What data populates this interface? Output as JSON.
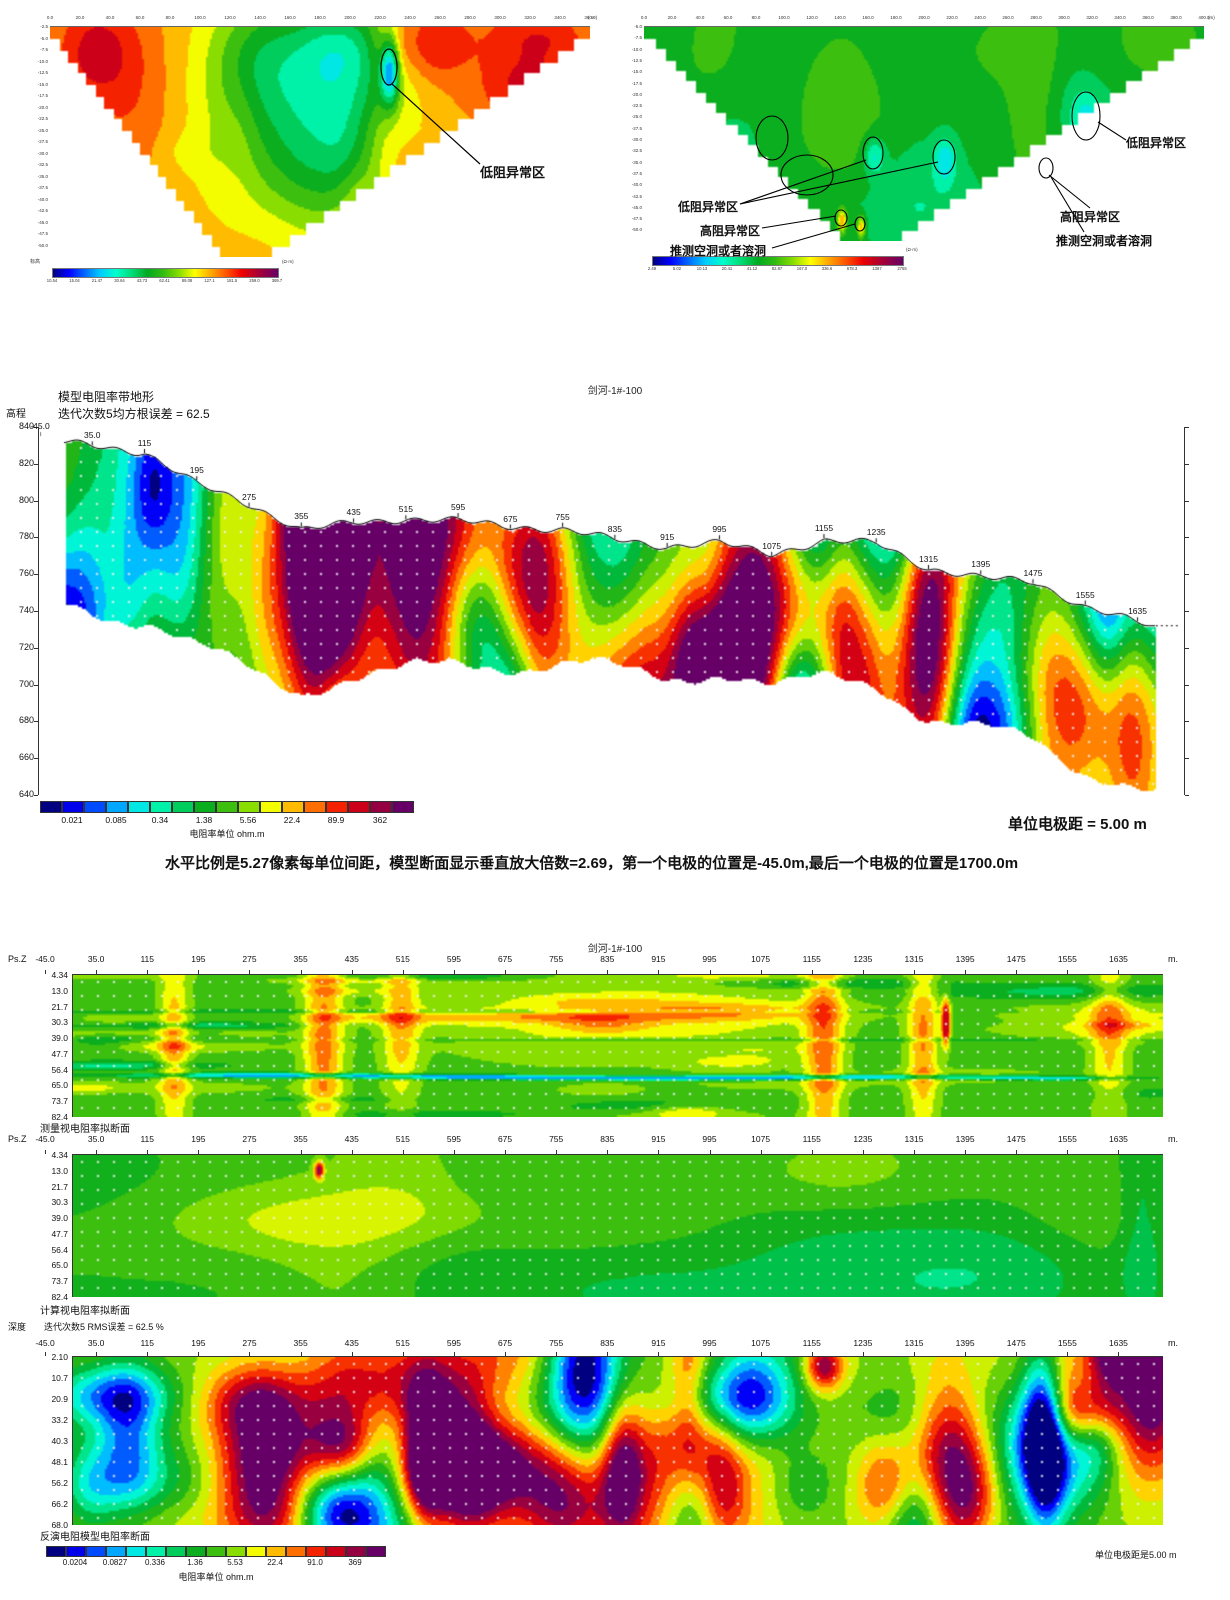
{
  "palette": [
    [
      0.0,
      "#000080"
    ],
    [
      0.07,
      "#0000ff"
    ],
    [
      0.14,
      "#0066ff"
    ],
    [
      0.21,
      "#00ccff"
    ],
    [
      0.28,
      "#00ffcc"
    ],
    [
      0.35,
      "#00dd77"
    ],
    [
      0.42,
      "#00aa22"
    ],
    [
      0.49,
      "#33bb11"
    ],
    [
      0.56,
      "#88dd00"
    ],
    [
      0.63,
      "#ffff00"
    ],
    [
      0.7,
      "#ffaa00"
    ],
    [
      0.77,
      "#ff5500"
    ],
    [
      0.84,
      "#ee0000"
    ],
    [
      0.91,
      "#aa0033"
    ],
    [
      1.0,
      "#660066"
    ]
  ],
  "section_a": {
    "x_unit": "( m )",
    "x_ticks": [
      "0.0",
      "20.0",
      "40.0",
      "60.0",
      "80.0",
      "100.0",
      "120.0",
      "140.0",
      "160.0",
      "180.0",
      "200.0",
      "220.0",
      "240.0",
      "260.0",
      "280.0",
      "300.0",
      "320.0",
      "340.0",
      "360.0"
    ],
    "y_ticks": [
      "-2.5",
      "-5.0",
      "-7.5",
      "-10.0",
      "-12.5",
      "-15.0",
      "-17.5",
      "-20.0",
      "-22.5",
      "-25.0",
      "-27.5",
      "-30.0",
      "-32.5",
      "-35.0",
      "-37.5",
      "-40.0",
      "-42.5",
      "-45.0",
      "-47.5",
      "-50.0"
    ],
    "corner_label": "标高",
    "annotation": "低阻异常区",
    "colorbar": {
      "values": [
        "10.54",
        "15.04",
        "21.47",
        "30.64",
        "43.73",
        "62.41",
        "89.08",
        "127.1",
        "181.5",
        "259.0",
        "369.7"
      ],
      "unit": "(Ω·m)"
    }
  },
  "section_b": {
    "x_unit": "(m)",
    "x_ticks": [
      "0.0",
      "20.0",
      "40.0",
      "60.0",
      "80.0",
      "100.0",
      "120.0",
      "140.0",
      "160.0",
      "180.0",
      "200.0",
      "220.0",
      "240.0",
      "260.0",
      "280.0",
      "300.0",
      "320.0",
      "340.0",
      "360.0",
      "380.0",
      "400.0"
    ],
    "y_ticks": [
      "-5.0",
      "-7.5",
      "-10.0",
      "-12.5",
      "-15.0",
      "-17.5",
      "-20.0",
      "-22.5",
      "-25.0",
      "-27.5",
      "-30.0",
      "-32.5",
      "-35.0",
      "-37.5",
      "-40.0",
      "-42.5",
      "-45.0",
      "-47.5",
      "-50.0"
    ],
    "annotations": [
      "低阻异常区",
      "高阻异常区",
      "推测空洞或者溶洞",
      "低阻异常区",
      "高阻异常区",
      "推测空洞或者溶洞"
    ],
    "colorbar": {
      "values": [
        "2.49",
        "5.02",
        "10.13",
        "20.41",
        "41.12",
        "82.87",
        "167.0",
        "336.6",
        "678.3",
        "1367",
        "2755"
      ],
      "unit": "(Ω·m)"
    }
  },
  "model_section": {
    "header_line1": "模型电阻率带地形",
    "header_line2": "迭代次数5均方根误差 = 62.5",
    "title": "剑河-1#-100",
    "y_axis_label": "高程",
    "elevation_ticks": [
      "840",
      "820",
      "800",
      "780",
      "760",
      "740",
      "720",
      "700",
      "680",
      "660",
      "640"
    ],
    "distance_labels": [
      "-45.0",
      "35.0",
      "115",
      "195",
      "275",
      "355",
      "435",
      "515",
      "595",
      "675",
      "755",
      "835",
      "915",
      "995",
      "1075",
      "1155",
      "1235",
      "1315",
      "1395",
      "1475",
      "1555",
      "1635"
    ],
    "colorbar": {
      "values": [
        "0.021",
        "0.085",
        "0.34",
        "1.38",
        "5.56",
        "22.4",
        "89.9",
        "362"
      ],
      "caption": "电阻率单位 ohm.m"
    },
    "electrode_note": "单位电极距 = 5.00 m"
  },
  "scale_note": "水平比例是5.27像素每单位间距，模型断面显示垂直放大倍数=2.69，第一个电极的位置是-45.0m,最后一个电极的位置是1700.0m",
  "pseudosections": {
    "title": "剑河-1#-100",
    "axis_label_psz": "Ps.Z",
    "axis_label_depth": "深度",
    "meter_label": "m.",
    "rms_header": "迭代次数5 RMS误差 = 62.5 %",
    "distance_labels": [
      "-45.0",
      "35.0",
      "115",
      "195",
      "275",
      "355",
      "435",
      "515",
      "595",
      "675",
      "755",
      "835",
      "915",
      "995",
      "1075",
      "1155",
      "1235",
      "1315",
      "1395",
      "1475",
      "1555",
      "1635"
    ],
    "measured_depth_ticks": [
      "4.34",
      "13.0",
      "21.7",
      "30.3",
      "39.0",
      "47.7",
      "56.4",
      "65.0",
      "73.7",
      "82.4"
    ],
    "inverted_depth_ticks": [
      "2.10",
      "10.7",
      "20.9",
      "33.2",
      "40.3",
      "48.1",
      "56.2",
      "66.2",
      "68.0"
    ],
    "caption_measured": "测量视电阻率拟断面",
    "caption_calculated": "计算视电阻率拟断面",
    "caption_inverted": "反演电阻模型电阻率断面",
    "colorbar": {
      "values": [
        "0.0204",
        "0.0827",
        "0.336",
        "1.36",
        "5.53",
        "22.4",
        "91.0",
        "369"
      ],
      "caption": "电阻率单位 ohm.m"
    },
    "electrode_note": "单位电极距是5.00 m"
  },
  "chart_data": [
    {
      "type": "heatmap",
      "name": "section-a-resistivity-profile",
      "shape": "inverted-trapezoid",
      "x_unit": "m",
      "x_range": [
        0,
        360
      ],
      "x_tick_step": 20,
      "y_ticks": [
        -2.5,
        -5,
        -7.5,
        -10,
        -12.5,
        -15,
        -17.5,
        -20,
        -22.5,
        -25,
        -27.5,
        -30,
        -32.5,
        -35,
        -37.5,
        -40,
        -42.5,
        -45,
        -47.5,
        -50
      ],
      "colorbar_ohm_m": [
        10.54,
        15.04,
        21.47,
        30.64,
        43.73,
        62.41,
        89.08,
        127.1,
        181.5,
        259.0,
        369.7
      ],
      "annotations": [
        "低阻异常区"
      ],
      "palette": "blue-cyan-green-yellow-orange-red rainbow"
    },
    {
      "type": "heatmap",
      "name": "section-b-resistivity-profile",
      "shape": "inverted-trapezoid",
      "x_unit": "m",
      "x_range": [
        0,
        400
      ],
      "x_tick_step": 20,
      "y_ticks": [
        -5,
        -7.5,
        -10,
        -12.5,
        -15,
        -17.5,
        -20,
        -22.5,
        -25,
        -27.5,
        -30,
        -32.5,
        -35,
        -37.5,
        -40,
        -42.5,
        -45,
        -47.5,
        -50
      ],
      "colorbar_ohm_m": [
        2.49,
        5.02,
        10.13,
        20.41,
        41.12,
        82.87,
        167.0,
        336.6,
        678.3,
        1367,
        2755
      ],
      "annotations": [
        "低阻异常区",
        "高阻异常区",
        "推测空洞或者溶洞",
        "低阻异常区",
        "高阻异常区",
        "推测空洞或者溶洞"
      ]
    },
    {
      "type": "heatmap",
      "name": "model-resistivity-with-topography",
      "title": "剑河-1#-100",
      "iterations": 5,
      "rms_error": 62.5,
      "ylabel": "高程",
      "elevation_range": [
        640,
        840
      ],
      "distance_ticks": [
        -45,
        35,
        115,
        195,
        275,
        355,
        435,
        515,
        595,
        675,
        755,
        835,
        915,
        995,
        1075,
        1155,
        1235,
        1315,
        1395,
        1475,
        1555,
        1635
      ],
      "first_electrode_m": -45.0,
      "last_electrode_m": 1700.0,
      "electrode_spacing_m": 5.0,
      "vertical_exaggeration": 2.69,
      "pixels_per_unit_spacing": 5.27,
      "colorbar_ohm_m": [
        0.021,
        0.085,
        0.34,
        1.38,
        5.56,
        22.4,
        89.9,
        362
      ]
    },
    {
      "type": "heatmap",
      "name": "measured-apparent-resistivity-pseudosection",
      "title": "剑河-1#-100",
      "ylabel": "Ps.Z",
      "psz_ticks": [
        4.34,
        13.0,
        21.7,
        30.3,
        39.0,
        47.7,
        56.4,
        65.0,
        73.7,
        82.4
      ],
      "caption": "测量视电阻率拟断面"
    },
    {
      "type": "heatmap",
      "name": "calculated-apparent-resistivity-pseudosection",
      "ylabel": "Ps.Z",
      "psz_ticks": [
        4.34,
        13.0,
        21.7,
        30.3,
        39.0,
        47.7,
        56.4,
        65.0,
        73.7,
        82.4
      ],
      "caption": "计算视电阻率拟断面"
    },
    {
      "type": "heatmap",
      "name": "inverse-model-resistivity-section",
      "ylabel": "深度",
      "iterations": 5,
      "rms_error_pct": 62.5,
      "depth_ticks": [
        2.1,
        10.7,
        20.9,
        33.2,
        40.3,
        48.1,
        56.2,
        66.2,
        68.0
      ],
      "caption": "反演电阻模型电阻率断面",
      "colorbar_ohm_m": [
        0.0204,
        0.0827,
        0.336,
        1.36,
        5.53,
        22.4,
        91.0,
        369
      ],
      "electrode_spacing_m": 5.0
    }
  ]
}
